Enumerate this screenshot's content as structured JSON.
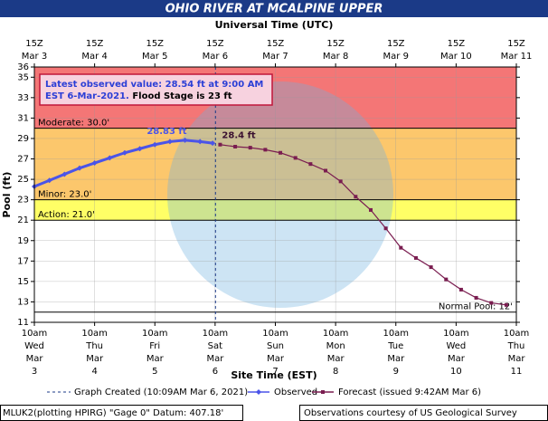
{
  "chart_data": {
    "type": "line",
    "title": "OHIO RIVER AT MCALPINE UPPER",
    "x2_title": "Universal Time (UTC)",
    "x_title": "Site Time (EST)",
    "y_title": "Pool (ft)",
    "xlim": [
      "2021-03-03T10:00",
      "2021-03-11T10:00"
    ],
    "ylim": [
      11,
      36
    ],
    "yticks": [
      11,
      13,
      15,
      17,
      19,
      21,
      23,
      25,
      27,
      29,
      31,
      33,
      35,
      36
    ],
    "grid": true,
    "xticks": [
      {
        "value": "2021-03-03T10:00",
        "label": "10am Wed Mar 3"
      },
      {
        "value": "2021-03-04T10:00",
        "label": "10am Thu Mar 4"
      },
      {
        "value": "2021-03-05T10:00",
        "label": "10am Fri Mar 5"
      },
      {
        "value": "2021-03-06T10:00",
        "label": "10am Sat Mar 6"
      },
      {
        "value": "2021-03-07T10:00",
        "label": "10am Sun Mar 7"
      },
      {
        "value": "2021-03-08T10:00",
        "label": "10am Mon Mar 8"
      },
      {
        "value": "2021-03-09T10:00",
        "label": "10am Tue Mar 9"
      },
      {
        "value": "2021-03-10T10:00",
        "label": "10am Wed Mar 10"
      },
      {
        "value": "2021-03-11T10:00",
        "label": "10am Thu Mar 11"
      }
    ],
    "x2ticks": [
      {
        "value": "2021-03-03T10:00",
        "label": "15Z Mar 3"
      },
      {
        "value": "2021-03-04T10:00",
        "label": "15Z Mar 4"
      },
      {
        "value": "2021-03-05T10:00",
        "label": "15Z Mar 5"
      },
      {
        "value": "2021-03-06T10:00",
        "label": "15Z Mar 6"
      },
      {
        "value": "2021-03-07T10:00",
        "label": "15Z Mar 7"
      },
      {
        "value": "2021-03-08T10:00",
        "label": "15Z Mar 8"
      },
      {
        "value": "2021-03-09T10:00",
        "label": "15Z Mar 9"
      },
      {
        "value": "2021-03-10T10:00",
        "label": "15Z Mar 10"
      },
      {
        "value": "2021-03-11T10:00",
        "label": "15Z Mar 11"
      }
    ],
    "thresholds": [
      {
        "label": "Moderate: 30.0'",
        "value": 30,
        "color": "#f47676"
      },
      {
        "label": "Minor: 23.0'",
        "value": 23,
        "color": "#fcc76c"
      },
      {
        "label": "Action: 21.0'",
        "value": 21,
        "color": "#ffff66"
      },
      {
        "label": "Normal Pool: 12'",
        "value": 12,
        "color": "#ffffff"
      }
    ],
    "series": [
      {
        "name": "Observed",
        "color": "#4b54e8",
        "marker": "diamond",
        "x": [
          "2021-03-03T10:00",
          "2021-03-03T16:00",
          "2021-03-03T22:00",
          "2021-03-04T04:00",
          "2021-03-04T10:00",
          "2021-03-04T16:00",
          "2021-03-04T22:00",
          "2021-03-05T04:00",
          "2021-03-05T10:00",
          "2021-03-05T16:00",
          "2021-03-05T22:00",
          "2021-03-06T04:00",
          "2021-03-06T09:00"
        ],
        "values": [
          24.3,
          24.9,
          25.5,
          26.1,
          26.6,
          27.1,
          27.6,
          28.0,
          28.4,
          28.7,
          28.83,
          28.7,
          28.54
        ]
      },
      {
        "name": "Forecast (issued 9:42AM Mar 6)",
        "color": "#7a1d50",
        "marker": "square",
        "x": [
          "2021-03-06T12:00",
          "2021-03-06T18:00",
          "2021-03-07T00:00",
          "2021-03-07T06:00",
          "2021-03-07T12:00",
          "2021-03-07T18:00",
          "2021-03-08T00:00",
          "2021-03-08T06:00",
          "2021-03-08T12:00",
          "2021-03-08T18:00",
          "2021-03-09T00:00",
          "2021-03-09T06:00",
          "2021-03-09T12:00",
          "2021-03-09T18:00",
          "2021-03-10T00:00",
          "2021-03-10T06:00",
          "2021-03-10T12:00",
          "2021-03-10T18:00",
          "2021-03-11T00:00",
          "2021-03-11T06:00"
        ],
        "values": [
          28.4,
          28.2,
          28.1,
          27.9,
          27.6,
          27.1,
          26.5,
          25.85,
          24.8,
          23.3,
          22.0,
          20.2,
          18.3,
          17.3,
          16.4,
          15.2,
          14.2,
          13.4,
          12.9,
          12.7
        ]
      }
    ],
    "annotations": [
      {
        "text": "28.83 ft",
        "x": "2021-03-05T22:00",
        "value": 28.83,
        "color": "#4b54e8"
      },
      {
        "text": "28.4 ft",
        "x": "2021-03-06T12:00",
        "value": 28.4,
        "color": "#3a1030"
      }
    ],
    "info_box": {
      "line1": "Latest observed value: 28.54 ft at 9:00 AM",
      "line2": "EST 6-Mar-2021.",
      "line3": " Flood Stage is 23 ft"
    },
    "graph_created": {
      "label": "Graph Created (10:09AM Mar 6, 2021)",
      "x": "2021-03-06T10:09"
    },
    "footer_left": "MLUK2(plotting HPIRG) \"Gage 0\" Datum: 407.18'",
    "footer_right": "Observations courtesy of US Geological Survey"
  }
}
